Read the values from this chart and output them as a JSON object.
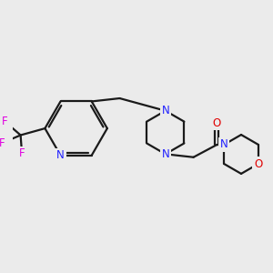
{
  "background_color": "#ebebeb",
  "bond_color": "#1a1a1a",
  "bond_width": 1.6,
  "atom_colors": {
    "N": "#2020ff",
    "O": "#e00000",
    "F": "#e000e0",
    "C": "#1a1a1a"
  },
  "font_size": 8.5,
  "fig_width": 3.0,
  "fig_height": 3.0,
  "dpi": 100
}
